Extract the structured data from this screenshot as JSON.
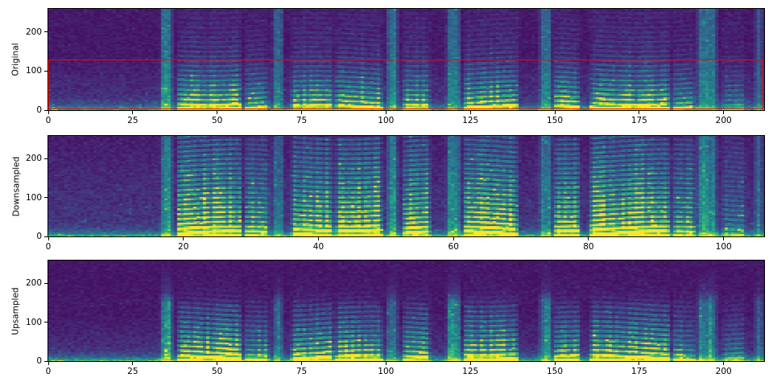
{
  "figure": {
    "kind": "spectrogram-comparison",
    "background": "#ffffff",
    "axis_color": "#000000",
    "tick_label_color": "#000000",
    "colormap": "viridis",
    "colormap_min": "#440154",
    "colormap_max": "#fde725"
  },
  "chart_data": [
    {
      "type": "heatmap",
      "ylabel": "Original",
      "x_ticks": [
        0,
        25,
        50,
        75,
        100,
        125,
        150,
        175,
        200
      ],
      "x_range": [
        0,
        212
      ],
      "y_ticks": [
        0,
        100,
        200
      ],
      "y_range": [
        0,
        259
      ],
      "colormap": "viridis",
      "grid": false,
      "legend": "none",
      "annotation_rect": {
        "x0": 0,
        "x1": 212,
        "y0": 0,
        "y1": 130,
        "color": "#ff0000"
      }
    },
    {
      "type": "heatmap",
      "ylabel": "Downsampled",
      "x_ticks": [
        0,
        20,
        40,
        60,
        80,
        100
      ],
      "x_range": [
        0,
        106
      ],
      "y_ticks": [
        0,
        100,
        200
      ],
      "y_range": [
        0,
        259
      ],
      "colormap": "viridis",
      "grid": false,
      "legend": "none",
      "annotation_rect": null
    },
    {
      "type": "heatmap",
      "ylabel": "Upsampled",
      "x_ticks": [
        0,
        25,
        50,
        75,
        100,
        125,
        150,
        175,
        200
      ],
      "x_range": [
        0,
        212
      ],
      "y_ticks": [
        0,
        100,
        200
      ],
      "y_range": [
        0,
        259
      ],
      "colormap": "viridis",
      "grid": false,
      "legend": "none",
      "annotation_rect": null
    }
  ],
  "speech_segments": [
    {
      "t0": 0.155,
      "t1": 0.175,
      "amp": 0.8,
      "kind": "broadband"
    },
    {
      "t0": 0.178,
      "t1": 0.272,
      "amp": 1.0,
      "kind": "voiced"
    },
    {
      "t0": 0.272,
      "t1": 0.31,
      "amp": 0.62,
      "kind": "voiced"
    },
    {
      "t0": 0.312,
      "t1": 0.33,
      "amp": 0.55,
      "kind": "broadband"
    },
    {
      "t0": 0.338,
      "t1": 0.4,
      "amp": 0.85,
      "kind": "voiced"
    },
    {
      "t0": 0.4,
      "t1": 0.468,
      "amp": 0.95,
      "kind": "voiced"
    },
    {
      "t0": 0.47,
      "t1": 0.49,
      "amp": 0.6,
      "kind": "broadband"
    },
    {
      "t0": 0.493,
      "t1": 0.535,
      "amp": 0.85,
      "kind": "voiced"
    },
    {
      "t0": 0.555,
      "t1": 0.578,
      "amp": 0.7,
      "kind": "broadband"
    },
    {
      "t0": 0.578,
      "t1": 0.658,
      "amp": 0.95,
      "kind": "voiced"
    },
    {
      "t0": 0.685,
      "t1": 0.705,
      "amp": 0.65,
      "kind": "broadband"
    },
    {
      "t0": 0.705,
      "t1": 0.745,
      "amp": 0.9,
      "kind": "voiced"
    },
    {
      "t0": 0.755,
      "t1": 0.87,
      "amp": 1.0,
      "kind": "voiced"
    },
    {
      "t0": 0.87,
      "t1": 0.905,
      "amp": 0.6,
      "kind": "voiced"
    },
    {
      "t0": 0.905,
      "t1": 0.935,
      "amp": 0.65,
      "kind": "broadband"
    },
    {
      "t0": 0.94,
      "t1": 0.975,
      "amp": 0.35,
      "kind": "voiced"
    },
    {
      "t0": 0.985,
      "t1": 1.0,
      "amp": 0.4,
      "kind": "broadband"
    }
  ]
}
